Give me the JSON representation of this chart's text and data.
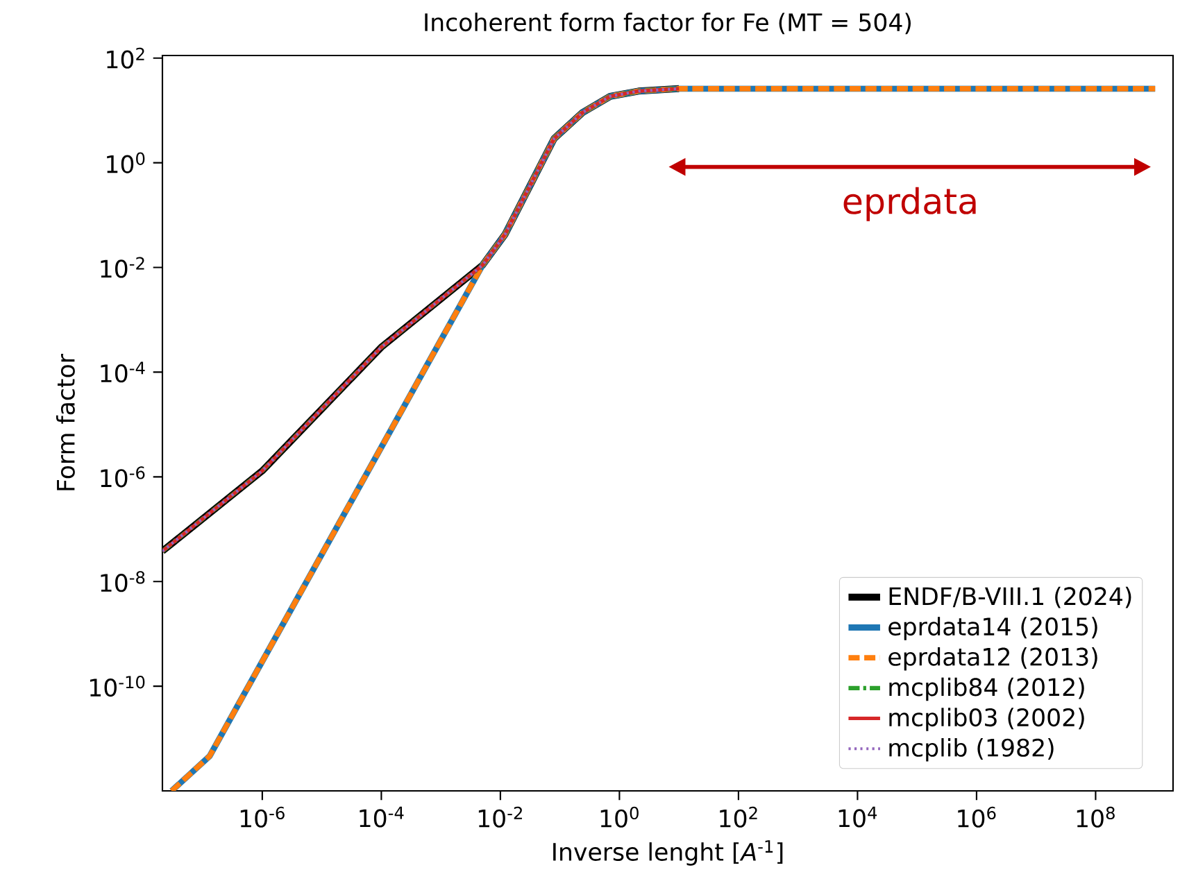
{
  "chart_data": {
    "type": "line",
    "title": "Incoherent form factor for Fe (MT = 504)",
    "xlabel": "Inverse lenght [*A*$^{-1}$]",
    "ylabel": "Form factor",
    "log": "xy",
    "xlim": [
      2.1e-08,
      2000000000.0
    ],
    "ylim": [
      1e-12,
      112
    ],
    "xticks": [
      {
        "value": 1e-06,
        "label": "10$^{-6}$"
      },
      {
        "value": 0.0001,
        "label": "10$^{-4}$"
      },
      {
        "value": 0.01,
        "label": "10$^{-2}$"
      },
      {
        "value": 1,
        "label": "10$^{0}$"
      },
      {
        "value": 100.0,
        "label": "10$^{2}$"
      },
      {
        "value": 10000.0,
        "label": "10$^{4}$"
      },
      {
        "value": 1000000.0,
        "label": "10$^{6}$"
      },
      {
        "value": 100000000.0,
        "label": "10$^{8}$"
      }
    ],
    "yticks": [
      {
        "value": 1e-10,
        "label": "10$^{-10}$"
      },
      {
        "value": 1e-08,
        "label": "10$^{-8}$"
      },
      {
        "value": 1e-06,
        "label": "10$^{-6}$"
      },
      {
        "value": 0.0001,
        "label": "10$^{-4}$"
      },
      {
        "value": 0.01,
        "label": "10$^{-2}$"
      },
      {
        "value": 1,
        "label": "10$^{0}$"
      },
      {
        "value": 100.0,
        "label": "10$^{2}$"
      }
    ],
    "legend": "bottom right",
    "grid": false,
    "marker": "none",
    "annotations": [
      "eprdata"
    ],
    "series": [
      {
        "name": "ENDF/B-VIII.1 (2024)",
        "color": "#000000",
        "line_style": "solid",
        "x": [
          2.1e-08,
          1e-06,
          0.0001,
          0.005,
          0.012,
          0.08,
          0.24,
          0.7,
          2.1,
          10
        ],
        "values": [
          3.8e-08,
          1.3e-06,
          0.0003,
          0.011,
          0.043,
          2.9,
          9.1,
          18.6,
          23.4,
          26
        ]
      },
      {
        "name": "eprdata14 (2015)",
        "color": "#1f77b4",
        "line_style": "solid",
        "x": [
          3e-08,
          1.3e-07,
          0.005,
          0.012,
          0.08,
          0.24,
          0.7,
          2.1,
          10,
          1000000000.0
        ],
        "values": [
          1e-12,
          4.6e-12,
          0.011,
          0.043,
          2.9,
          9.1,
          18.6,
          23.4,
          26,
          26
        ]
      },
      {
        "name": "eprdata12 (2013)",
        "color": "#ff7f0e",
        "line_style": "dashed",
        "x": [
          3e-08,
          1.3e-07,
          0.005,
          0.012,
          0.08,
          0.24,
          0.7,
          2.1,
          10,
          1000000000.0
        ],
        "values": [
          1e-12,
          4.6e-12,
          0.011,
          0.043,
          2.9,
          9.1,
          18.6,
          23.4,
          26,
          26
        ]
      },
      {
        "name": "mcplib84 (2012)",
        "color": "#2ca02c",
        "line_style": "dashdot",
        "x": [
          2.1e-08,
          1e-06,
          0.0001,
          0.005,
          0.012,
          0.08,
          0.24,
          0.7,
          2.1,
          10
        ],
        "values": [
          3.8e-08,
          1.3e-06,
          0.0003,
          0.011,
          0.043,
          2.9,
          9.1,
          18.6,
          23.4,
          26
        ]
      },
      {
        "name": "mcplib03 (2002)",
        "color": "#d62728",
        "line_style": "solid",
        "x": [
          2.1e-08,
          1e-06,
          0.0001,
          0.005,
          0.012,
          0.08,
          0.24,
          0.7,
          2.1,
          10
        ],
        "values": [
          3.8e-08,
          1.3e-06,
          0.0003,
          0.011,
          0.043,
          2.9,
          9.1,
          18.6,
          23.4,
          26
        ]
      },
      {
        "name": "mcplib (1982)",
        "color": "#9467bd",
        "line_style": "dotted",
        "x": [
          2.1e-08,
          1e-06,
          0.0001,
          0.005,
          0.012,
          0.08,
          0.24,
          0.7,
          2.1,
          10
        ],
        "values": [
          3.8e-08,
          1.3e-06,
          0.0003,
          0.011,
          0.043,
          2.9,
          9.1,
          18.6,
          23.4,
          26
        ]
      }
    ]
  }
}
